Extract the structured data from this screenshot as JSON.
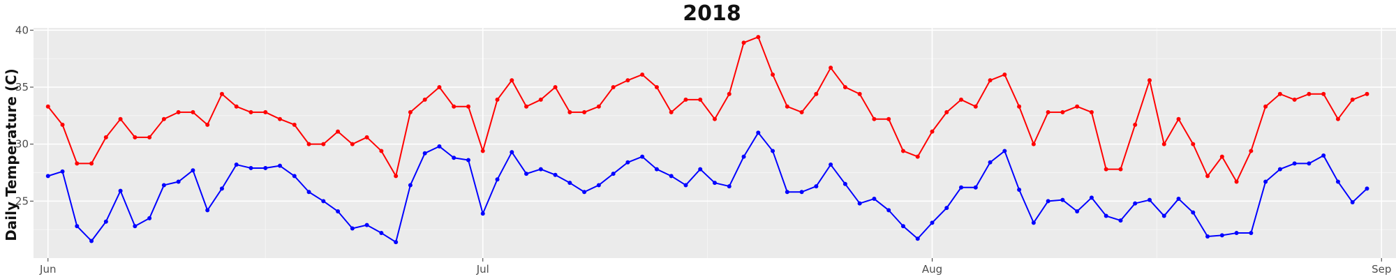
{
  "chart_data": {
    "type": "line",
    "title": "2018",
    "xlabel": "",
    "ylabel": "Daily Temperature (C)",
    "x_start": "2018-06-01",
    "xlim": [
      "2018-05-31",
      "2018-09-02"
    ],
    "ylim": [
      20.0,
      40.2
    ],
    "x_ticks": [
      {
        "label": "Jun",
        "date": "2018-06-01"
      },
      {
        "label": "Jul",
        "date": "2018-07-01"
      },
      {
        "label": "Aug",
        "date": "2018-08-01"
      },
      {
        "label": "Sep",
        "date": "2018-09-01"
      }
    ],
    "y_ticks": [
      25,
      30,
      35,
      40
    ],
    "grid": true,
    "legend": "none",
    "series": [
      {
        "color": "#ff0000",
        "values": [
          33.3,
          31.7,
          28.3,
          28.3,
          30.6,
          32.2,
          30.6,
          30.6,
          32.2,
          32.8,
          32.8,
          31.7,
          34.4,
          33.3,
          32.8,
          32.8,
          32.2,
          31.7,
          30.0,
          30.0,
          31.1,
          30.0,
          30.6,
          29.4,
          27.2,
          32.8,
          33.9,
          35.0,
          33.3,
          33.3,
          29.4,
          33.9,
          35.6,
          33.3,
          33.9,
          35.0,
          32.8,
          32.8,
          33.3,
          35.0,
          35.6,
          36.1,
          35.0,
          32.8,
          33.9,
          33.9,
          32.2,
          34.4,
          38.9,
          39.4,
          36.1,
          33.3,
          32.8,
          34.4,
          36.7,
          35.0,
          34.4,
          32.2,
          32.2,
          29.4,
          28.9,
          31.1,
          32.8,
          33.9,
          33.3,
          35.6,
          36.1,
          33.3,
          30.0,
          32.8,
          32.8,
          33.3,
          32.8,
          27.8,
          27.8,
          31.7,
          35.6,
          30.0,
          32.2,
          30.0,
          27.2,
          28.9,
          26.7,
          29.4,
          33.3,
          34.4,
          33.9,
          34.4,
          34.4,
          32.2,
          33.9,
          34.4
        ]
      },
      {
        "color": "#0000ff",
        "values": [
          27.2,
          27.6,
          22.8,
          21.5,
          23.2,
          25.9,
          22.8,
          23.5,
          26.4,
          26.7,
          27.7,
          24.2,
          26.1,
          28.2,
          27.9,
          27.9,
          28.1,
          27.2,
          25.8,
          25.0,
          24.1,
          22.6,
          22.9,
          22.2,
          21.4,
          26.4,
          29.2,
          29.8,
          28.8,
          28.6,
          23.9,
          26.9,
          29.3,
          27.4,
          27.8,
          27.3,
          26.6,
          25.8,
          26.4,
          27.4,
          28.4,
          28.9,
          27.8,
          27.2,
          26.4,
          27.8,
          26.6,
          26.3,
          28.9,
          31.0,
          29.4,
          25.8,
          25.8,
          26.3,
          28.2,
          26.5,
          24.8,
          25.2,
          24.2,
          22.8,
          21.7,
          23.1,
          24.4,
          26.2,
          26.2,
          28.4,
          29.4,
          26.0,
          23.1,
          25.0,
          25.1,
          24.1,
          25.3,
          23.7,
          23.3,
          24.8,
          25.1,
          23.7,
          25.2,
          24.0,
          21.9,
          22.0,
          22.2,
          22.2,
          26.7,
          27.8,
          28.3,
          28.3,
          29.0,
          26.7,
          24.9,
          26.1
        ]
      }
    ]
  }
}
